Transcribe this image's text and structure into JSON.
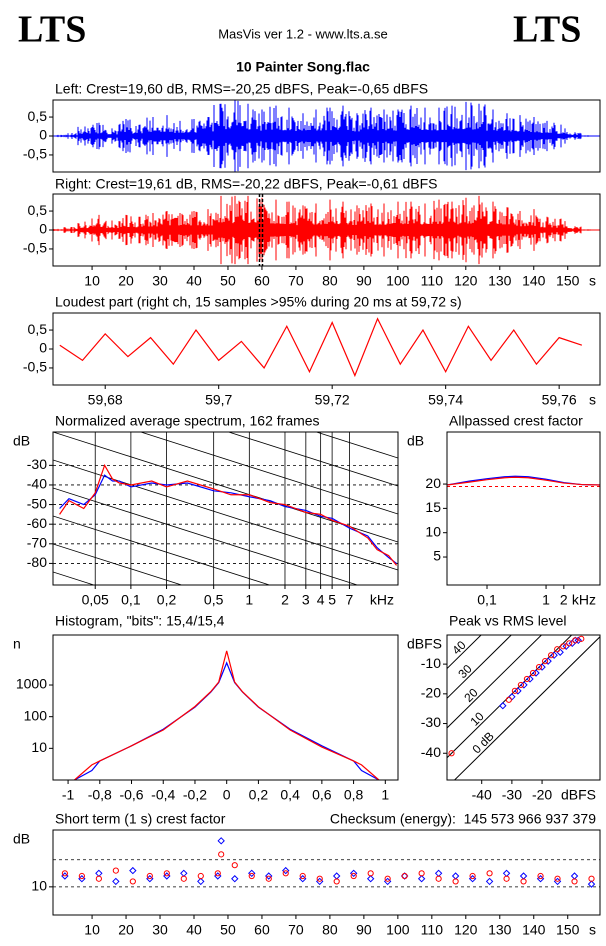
{
  "header": {
    "left": "LTS",
    "center": "MasVis ver 1.2 - www.lts.a.se",
    "right": "LTS",
    "title": "10 Painter Song.flac"
  },
  "chart_data": [
    {
      "type": "waveform",
      "title": "Left: Crest=19,60 dB, RMS=-20,25 dBFS, Peak=-0,65 dBFS",
      "color": "#0000ff",
      "x": [
        0,
        4,
        8,
        12,
        16,
        20,
        24,
        28,
        32,
        36,
        40,
        44,
        48,
        52,
        56,
        60,
        64,
        68,
        72,
        76,
        80,
        84,
        88,
        92,
        96,
        100,
        104,
        108,
        112,
        116,
        120,
        124,
        128,
        132,
        136,
        140,
        144,
        148,
        152,
        156
      ],
      "values": [
        0.03,
        0.08,
        0.25,
        0.35,
        0.2,
        0.45,
        0.3,
        0.5,
        0.55,
        0.4,
        0.45,
        0.5,
        0.85,
        0.95,
        0.85,
        0.7,
        0.8,
        0.75,
        0.6,
        0.7,
        0.75,
        0.8,
        0.6,
        0.75,
        0.7,
        0.7,
        0.8,
        0.75,
        0.75,
        0.8,
        0.9,
        0.85,
        0.7,
        0.6,
        0.55,
        0.5,
        0.4,
        0.3,
        0.1,
        0.02
      ],
      "xlim": [
        -1.5,
        159.5
      ],
      "ylim": [
        -0.95,
        0.95
      ],
      "yticks": [
        {
          "value": 0.5,
          "label": "0,5"
        },
        0,
        {
          "value": -0.5,
          "label": "-0,5"
        }
      ]
    },
    {
      "type": "waveform",
      "title": "Right: Crest=19,61 dB, RMS=-20,22 dBFS, Peak=-0,61 dBFS",
      "color": "#ff0000",
      "x": [
        0,
        4,
        8,
        12,
        16,
        20,
        24,
        28,
        32,
        36,
        40,
        44,
        48,
        52,
        56,
        60,
        64,
        68,
        72,
        76,
        80,
        84,
        88,
        92,
        96,
        100,
        104,
        108,
        112,
        116,
        120,
        124,
        128,
        132,
        136,
        140,
        144,
        148,
        152,
        156
      ],
      "values": [
        0.03,
        0.08,
        0.22,
        0.4,
        0.25,
        0.4,
        0.35,
        0.45,
        0.5,
        0.45,
        0.5,
        0.55,
        0.9,
        0.9,
        0.9,
        0.85,
        0.8,
        0.75,
        0.65,
        0.7,
        0.8,
        0.75,
        0.65,
        0.7,
        0.7,
        0.75,
        0.75,
        0.7,
        0.8,
        0.75,
        0.85,
        0.9,
        0.75,
        0.6,
        0.5,
        0.55,
        0.35,
        0.3,
        0.1,
        0.02
      ],
      "marker": 59.72,
      "xlim": [
        -1.5,
        159.5
      ],
      "ylim": [
        -0.95,
        0.95
      ],
      "yticks": [
        {
          "value": 0.5,
          "label": "0,5"
        },
        0,
        {
          "value": -0.5,
          "label": "-0,5"
        }
      ],
      "xticks": [
        10,
        20,
        30,
        40,
        50,
        60,
        70,
        80,
        90,
        100,
        110,
        120,
        130,
        140,
        150
      ],
      "x_unit": "s"
    },
    {
      "type": "line",
      "title": "Loudest part (right ch, 15 samples >95% during 20 ms at 59,72 s)",
      "color": "#ff0000",
      "x": [
        59.672,
        59.676,
        59.68,
        59.684,
        59.688,
        59.692,
        59.696,
        59.7,
        59.704,
        59.708,
        59.712,
        59.716,
        59.72,
        59.724,
        59.728,
        59.732,
        59.736,
        59.74,
        59.744,
        59.748,
        59.752,
        59.756,
        59.76,
        59.764
      ],
      "values": [
        0.1,
        -0.3,
        0.4,
        -0.2,
        0.3,
        -0.4,
        0.5,
        -0.3,
        0.2,
        -0.5,
        0.6,
        -0.6,
        0.7,
        -0.7,
        0.8,
        -0.4,
        0.5,
        -0.6,
        0.6,
        -0.3,
        0.5,
        -0.4,
        0.3,
        0.1
      ],
      "xlim": [
        59.6708,
        59.7672
      ],
      "ylim": [
        -0.95,
        0.95
      ],
      "yticks": [
        {
          "value": 0.5,
          "label": "0,5"
        },
        0,
        {
          "value": -0.5,
          "label": "-0,5"
        }
      ],
      "xticks": [
        {
          "value": 59.68,
          "label": "59,68"
        },
        {
          "value": 59.7,
          "label": "59,7"
        },
        {
          "value": 59.72,
          "label": "59,72"
        },
        {
          "value": 59.74,
          "label": "59,74"
        },
        {
          "value": 59.76,
          "label": "59,76"
        }
      ],
      "x_unit": "s"
    },
    {
      "type": "line",
      "title": "Normalized average spectrum, 162 frames",
      "y_label": "dB",
      "x_unit": "kHz",
      "xlog": true,
      "xgrid": true,
      "ygrid": true,
      "x": [
        0.025,
        0.03,
        0.04,
        0.05,
        0.06,
        0.07,
        0.08,
        0.1,
        0.15,
        0.2,
        0.3,
        0.5,
        0.7,
        1,
        1.5,
        2,
        3,
        4,
        5,
        7,
        10,
        12,
        15,
        17.5
      ],
      "series": [
        {
          "color": "#0000ff",
          "values": [
            -52,
            -47,
            -50,
            -45,
            -35,
            -38,
            -38,
            -41,
            -39,
            -40,
            -39,
            -43,
            -44,
            -46,
            -48,
            -51,
            -53,
            -56,
            -57,
            -62,
            -66,
            -72,
            -77,
            -80
          ]
        },
        {
          "color": "#ff0000",
          "values": [
            -55,
            -48,
            -52,
            -44,
            -30,
            -37,
            -39,
            -40,
            -38,
            -41,
            -38,
            -42,
            -45,
            -45,
            -49,
            -50,
            -54,
            -55,
            -58,
            -61,
            -67,
            -73,
            -76,
            -81
          ]
        }
      ],
      "xlim": [
        0.022,
        18
      ],
      "ylim": [
        -91,
        -13
      ],
      "yticks": [
        -30,
        -40,
        -50,
        -60,
        -70,
        -80
      ],
      "xticks": [
        {
          "value": 0.05,
          "label": "0,05"
        },
        {
          "value": 0.1,
          "label": "0,1"
        },
        {
          "value": 0.2,
          "label": "0,2"
        },
        {
          "value": 0.5,
          "label": "0,5"
        },
        1,
        2,
        3,
        4,
        5,
        7
      ]
    },
    {
      "type": "line",
      "title": "Allpassed crest factor",
      "y_label": "dB",
      "x_unit": "kHz",
      "xlog": true,
      "x": [
        0.021,
        0.05,
        0.1,
        0.2,
        0.3,
        0.5,
        1,
        2,
        4,
        8.2
      ],
      "series": [
        {
          "color": "#0000ff",
          "values": [
            19.8,
            20.6,
            21.1,
            21.5,
            21.6,
            21.5,
            21,
            20.3,
            19.9,
            19.8
          ]
        },
        {
          "color": "#ff0000",
          "values": [
            19.8,
            20.4,
            20.9,
            21.3,
            21.4,
            21.3,
            20.8,
            20.2,
            19.9,
            19.8
          ]
        }
      ],
      "ref_line": 19.5,
      "ref_color": "#ff0000",
      "xlim": [
        0.021,
        8.2
      ],
      "ylim": [
        -0.75,
        30.7
      ],
      "yticks": [
        20,
        15,
        10,
        5
      ],
      "xticks": [
        {
          "value": 0.1,
          "label": "0,1"
        },
        1,
        2
      ]
    },
    {
      "type": "line",
      "title": "Histogram, \"bits\": 15,4/15,4",
      "y_label": "n",
      "ylog": true,
      "x": [
        -0.96,
        -0.85,
        -0.8,
        -0.6,
        -0.4,
        -0.2,
        -0.1,
        -0.05,
        0,
        0.05,
        0.1,
        0.2,
        0.4,
        0.6,
        0.8,
        0.85,
        0.96
      ],
      "series": [
        {
          "color": "#0000ff",
          "values": [
            1,
            2,
            4,
            12,
            40,
            200,
            600,
            1200,
            5000,
            1200,
            600,
            200,
            40,
            12,
            4,
            2,
            1
          ]
        },
        {
          "color": "#ff0000",
          "values": [
            1,
            3,
            4,
            12,
            38,
            210,
            620,
            1250,
            12000,
            1250,
            610,
            205,
            38,
            11,
            4,
            3,
            1
          ]
        }
      ],
      "xlim": [
        -1.095,
        1.08
      ],
      "ylim": [
        1,
        38000
      ],
      "yticks": [
        10,
        100,
        1000
      ],
      "xticks": [
        -1,
        {
          "value": -0.8,
          "label": "-0,8"
        },
        {
          "value": -0.6,
          "label": "-0,6"
        },
        {
          "value": -0.4,
          "label": "-0,4"
        },
        {
          "value": -0.2,
          "label": "-0,2"
        },
        0,
        {
          "value": 0.2,
          "label": "0,2"
        },
        {
          "value": 0.4,
          "label": "0,4"
        },
        {
          "value": 0.6,
          "label": "0,6"
        },
        {
          "value": 0.8,
          "label": "0,8"
        },
        1
      ]
    },
    {
      "type": "scatter",
      "title": "Peak vs RMS level",
      "y_label": "dBFS",
      "x_unit": "dBFS",
      "series": [
        {
          "color": "#0000ff",
          "marker": "diamond",
          "x": [
            -33,
            -30,
            -28,
            -26,
            -24,
            -22,
            -20,
            -18,
            -16,
            -14,
            -12,
            -10,
            -9,
            -8
          ],
          "values": [
            -24,
            -21,
            -19,
            -17,
            -15,
            -13,
            -11,
            -9,
            -7,
            -6,
            -4,
            -3,
            -2,
            -2
          ]
        },
        {
          "color": "#ff0000",
          "marker": "circle",
          "x": [
            -31,
            -29,
            -27,
            -25,
            -23,
            -21,
            -19,
            -17,
            -15,
            -13,
            -11,
            -9,
            -7,
            -50
          ],
          "values": [
            -22,
            -19,
            -17,
            -15,
            -13,
            -11,
            -9,
            -7,
            -5,
            -4,
            -3,
            -2,
            -1.5,
            -40
          ]
        }
      ],
      "crest_lines": [
        {
          "value": 40,
          "label": "40"
        },
        {
          "value": 30,
          "label": "30"
        },
        {
          "value": 20,
          "label": "20"
        },
        {
          "value": 10,
          "label": "10"
        },
        {
          "value": 0,
          "label": "0 dB"
        }
      ],
      "xlim": [
        -51.5,
        -0.8
      ],
      "ylim": [
        -49,
        -0.2
      ],
      "yticks": [
        -10,
        -20,
        -30,
        -40
      ],
      "xticks": [
        -40,
        -30,
        -20
      ]
    },
    {
      "type": "scatter",
      "title": "Short term (1 s) crest factor",
      "annotation": "Checksum (energy):  145 573 966 937 379",
      "y_label": "dB",
      "x_unit": "s",
      "x": [
        2,
        7,
        12,
        17,
        22,
        27,
        32,
        37,
        42,
        47,
        48,
        52,
        57,
        62,
        67,
        72,
        77,
        82,
        87,
        92,
        97,
        102,
        107,
        112,
        117,
        122,
        127,
        132,
        137,
        142,
        147,
        152,
        157
      ],
      "series": [
        {
          "color": "#0000ff",
          "marker": "diamond",
          "values": [
            14,
            13,
            15,
            12,
            16,
            13,
            14,
            15,
            12,
            14,
            27,
            13,
            15,
            14,
            16,
            13,
            12,
            14,
            15,
            13,
            12,
            14,
            13,
            15,
            14,
            13,
            12,
            15,
            14,
            13,
            12,
            14,
            11
          ]
        },
        {
          "color": "#ff0000",
          "marker": "circle",
          "values": [
            15,
            14,
            13,
            16,
            12,
            14,
            15,
            13,
            14,
            15,
            22,
            18,
            14,
            13,
            15,
            14,
            13,
            12,
            14,
            15,
            13,
            14,
            15,
            13,
            12,
            14,
            15,
            13,
            12,
            14,
            13,
            12,
            13
          ]
        }
      ],
      "hlines": [
        10,
        20
      ],
      "xlim": [
        -1.5,
        159.5
      ],
      "ylim": [
        -0.4,
        31
      ],
      "yticks": [
        10
      ],
      "xticks": [
        10,
        20,
        30,
        40,
        50,
        60,
        70,
        80,
        90,
        100,
        110,
        120,
        130,
        140,
        150
      ]
    }
  ]
}
